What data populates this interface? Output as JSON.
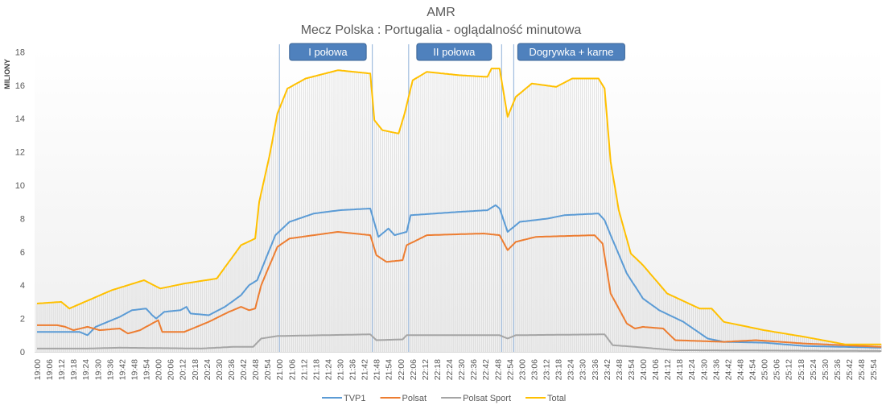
{
  "chart_data": {
    "type": "line",
    "title": "AMR",
    "subtitle": "Mecz Polska : Portugalia  - oglądalność  minutowa",
    "ylabel": "MILIONY",
    "xlabel": "",
    "ylim": [
      0,
      18
    ],
    "yticks": [
      0,
      2,
      4,
      6,
      8,
      10,
      12,
      14,
      16,
      18
    ],
    "x_start": "19:00",
    "x_minutes": 418,
    "x_tick_step_minutes": 6,
    "x_tick_labels": [
      "19:00",
      "19:06",
      "19:12",
      "19:18",
      "19:24",
      "19:30",
      "19:36",
      "19:42",
      "19:48",
      "19:54",
      "20:00",
      "20:06",
      "20:12",
      "20:18",
      "20:24",
      "20:30",
      "20:36",
      "20:42",
      "20:48",
      "20:54",
      "21:00",
      "21:06",
      "21:12",
      "21:18",
      "21:24",
      "21:30",
      "21:36",
      "21:42",
      "21:48",
      "21:54",
      "22:00",
      "22:06",
      "22:12",
      "22:18",
      "22:24",
      "22:30",
      "22:36",
      "22:42",
      "22:48",
      "22:54",
      "23:00",
      "23:06",
      "23:12",
      "23:18",
      "23:24",
      "23:30",
      "23:36",
      "23:42",
      "23:48",
      "23:54",
      "24:00",
      "24:06",
      "24:12",
      "24:18",
      "24:24",
      "24:30",
      "24:36",
      "24:42",
      "24:48",
      "24:54",
      "25:00",
      "25:06",
      "25:12",
      "25:18",
      "25:24",
      "25:30",
      "25:36",
      "25:42",
      "25:48",
      "25:54"
    ],
    "grid": false,
    "legend": "bottom",
    "drop_lines_to": "Total",
    "series": [
      {
        "name": "TVP1",
        "color": "#5b9bd5",
        "points_minute_value": [
          [
            0,
            1.2
          ],
          [
            21,
            1.2
          ],
          [
            25,
            1.0
          ],
          [
            29,
            1.5
          ],
          [
            35,
            1.8
          ],
          [
            41,
            2.1
          ],
          [
            47,
            2.5
          ],
          [
            54,
            2.6
          ],
          [
            57,
            2.2
          ],
          [
            59,
            2.0
          ],
          [
            63,
            2.4
          ],
          [
            71,
            2.5
          ],
          [
            74,
            2.7
          ],
          [
            76,
            2.3
          ],
          [
            85,
            2.2
          ],
          [
            93,
            2.7
          ],
          [
            101,
            3.4
          ],
          [
            105,
            4.0
          ],
          [
            109,
            4.3
          ],
          [
            118,
            7.0
          ],
          [
            125,
            7.8
          ],
          [
            137,
            8.3
          ],
          [
            150,
            8.5
          ],
          [
            165,
            8.6
          ],
          [
            169,
            6.9
          ],
          [
            174,
            7.4
          ],
          [
            177,
            7.0
          ],
          [
            183,
            7.2
          ],
          [
            185,
            8.2
          ],
          [
            209,
            8.4
          ],
          [
            223,
            8.5
          ],
          [
            227,
            8.8
          ],
          [
            229,
            8.6
          ],
          [
            233,
            7.2
          ],
          [
            239,
            7.8
          ],
          [
            253,
            8.0
          ],
          [
            261,
            8.2
          ],
          [
            278,
            8.3
          ],
          [
            281,
            7.9
          ],
          [
            284,
            7.0
          ],
          [
            292,
            4.7
          ],
          [
            300,
            3.2
          ],
          [
            308,
            2.5
          ],
          [
            320,
            1.8
          ],
          [
            332,
            0.8
          ],
          [
            340,
            0.6
          ],
          [
            360,
            0.55
          ],
          [
            380,
            0.35
          ],
          [
            418,
            0.25
          ]
        ]
      },
      {
        "name": "Polsat",
        "color": "#ed7d31",
        "points_minute_value": [
          [
            0,
            1.6
          ],
          [
            10,
            1.6
          ],
          [
            14,
            1.5
          ],
          [
            18,
            1.3
          ],
          [
            25,
            1.5
          ],
          [
            31,
            1.3
          ],
          [
            41,
            1.4
          ],
          [
            45,
            1.1
          ],
          [
            51,
            1.3
          ],
          [
            60,
            1.9
          ],
          [
            62,
            1.2
          ],
          [
            73,
            1.2
          ],
          [
            85,
            1.8
          ],
          [
            95,
            2.4
          ],
          [
            101,
            2.7
          ],
          [
            105,
            2.5
          ],
          [
            108,
            2.6
          ],
          [
            111,
            4.0
          ],
          [
            119,
            6.3
          ],
          [
            125,
            6.8
          ],
          [
            149,
            7.2
          ],
          [
            165,
            7.0
          ],
          [
            168,
            5.8
          ],
          [
            173,
            5.4
          ],
          [
            181,
            5.5
          ],
          [
            183,
            6.4
          ],
          [
            193,
            7.0
          ],
          [
            221,
            7.1
          ],
          [
            229,
            7.0
          ],
          [
            233,
            6.1
          ],
          [
            237,
            6.6
          ],
          [
            247,
            6.9
          ],
          [
            276,
            7.0
          ],
          [
            280,
            6.5
          ],
          [
            284,
            3.5
          ],
          [
            292,
            1.7
          ],
          [
            296,
            1.4
          ],
          [
            300,
            1.5
          ],
          [
            310,
            1.4
          ],
          [
            316,
            0.7
          ],
          [
            340,
            0.6
          ],
          [
            356,
            0.7
          ],
          [
            380,
            0.5
          ],
          [
            418,
            0.3
          ]
        ]
      },
      {
        "name": "Polsat Sport",
        "color": "#a5a5a5",
        "points_minute_value": [
          [
            0,
            0.2
          ],
          [
            25,
            0.2
          ],
          [
            41,
            0.25
          ],
          [
            81,
            0.2
          ],
          [
            97,
            0.3
          ],
          [
            107,
            0.3
          ],
          [
            111,
            0.8
          ],
          [
            119,
            0.95
          ],
          [
            165,
            1.05
          ],
          [
            168,
            0.7
          ],
          [
            181,
            0.75
          ],
          [
            183,
            1.0
          ],
          [
            229,
            1.0
          ],
          [
            233,
            0.8
          ],
          [
            237,
            1.0
          ],
          [
            281,
            1.05
          ],
          [
            285,
            0.4
          ],
          [
            296,
            0.3
          ],
          [
            316,
            0.1
          ],
          [
            418,
            0.05
          ]
        ]
      },
      {
        "name": "Total",
        "color": "#ffc000",
        "points_minute_value": [
          [
            0,
            2.9
          ],
          [
            12,
            3.0
          ],
          [
            16,
            2.6
          ],
          [
            37,
            3.7
          ],
          [
            53,
            4.3
          ],
          [
            61,
            3.8
          ],
          [
            73,
            4.1
          ],
          [
            89,
            4.4
          ],
          [
            101,
            6.4
          ],
          [
            108,
            6.8
          ],
          [
            110,
            9.0
          ],
          [
            115,
            11.7
          ],
          [
            119,
            14.3
          ],
          [
            124,
            15.8
          ],
          [
            133,
            16.4
          ],
          [
            149,
            16.9
          ],
          [
            165,
            16.7
          ],
          [
            167,
            13.9
          ],
          [
            171,
            13.3
          ],
          [
            179,
            13.1
          ],
          [
            182,
            14.3
          ],
          [
            186,
            16.3
          ],
          [
            193,
            16.8
          ],
          [
            209,
            16.6
          ],
          [
            223,
            16.5
          ],
          [
            225,
            17.0
          ],
          [
            229,
            17.0
          ],
          [
            233,
            14.1
          ],
          [
            237,
            15.3
          ],
          [
            245,
            16.1
          ],
          [
            257,
            15.9
          ],
          [
            265,
            16.4
          ],
          [
            278,
            16.4
          ],
          [
            281,
            15.8
          ],
          [
            284,
            11.4
          ],
          [
            288,
            8.5
          ],
          [
            294,
            5.9
          ],
          [
            300,
            5.2
          ],
          [
            312,
            3.5
          ],
          [
            328,
            2.6
          ],
          [
            334,
            2.6
          ],
          [
            340,
            1.8
          ],
          [
            360,
            1.3
          ],
          [
            380,
            0.9
          ],
          [
            400,
            0.45
          ],
          [
            418,
            0.45
          ]
        ]
      }
    ],
    "event_lines_minutes": [
      120,
      166,
      184,
      230,
      236
    ],
    "annotations": [
      {
        "label": "I połowa",
        "from_minute": 125,
        "to_minute": 163
      },
      {
        "label": "II połowa",
        "from_minute": 188,
        "to_minute": 225
      },
      {
        "label": "Dogrywka + karne",
        "from_minute": 238,
        "to_minute": 291
      }
    ],
    "annotation_color": "#4f81bd"
  }
}
